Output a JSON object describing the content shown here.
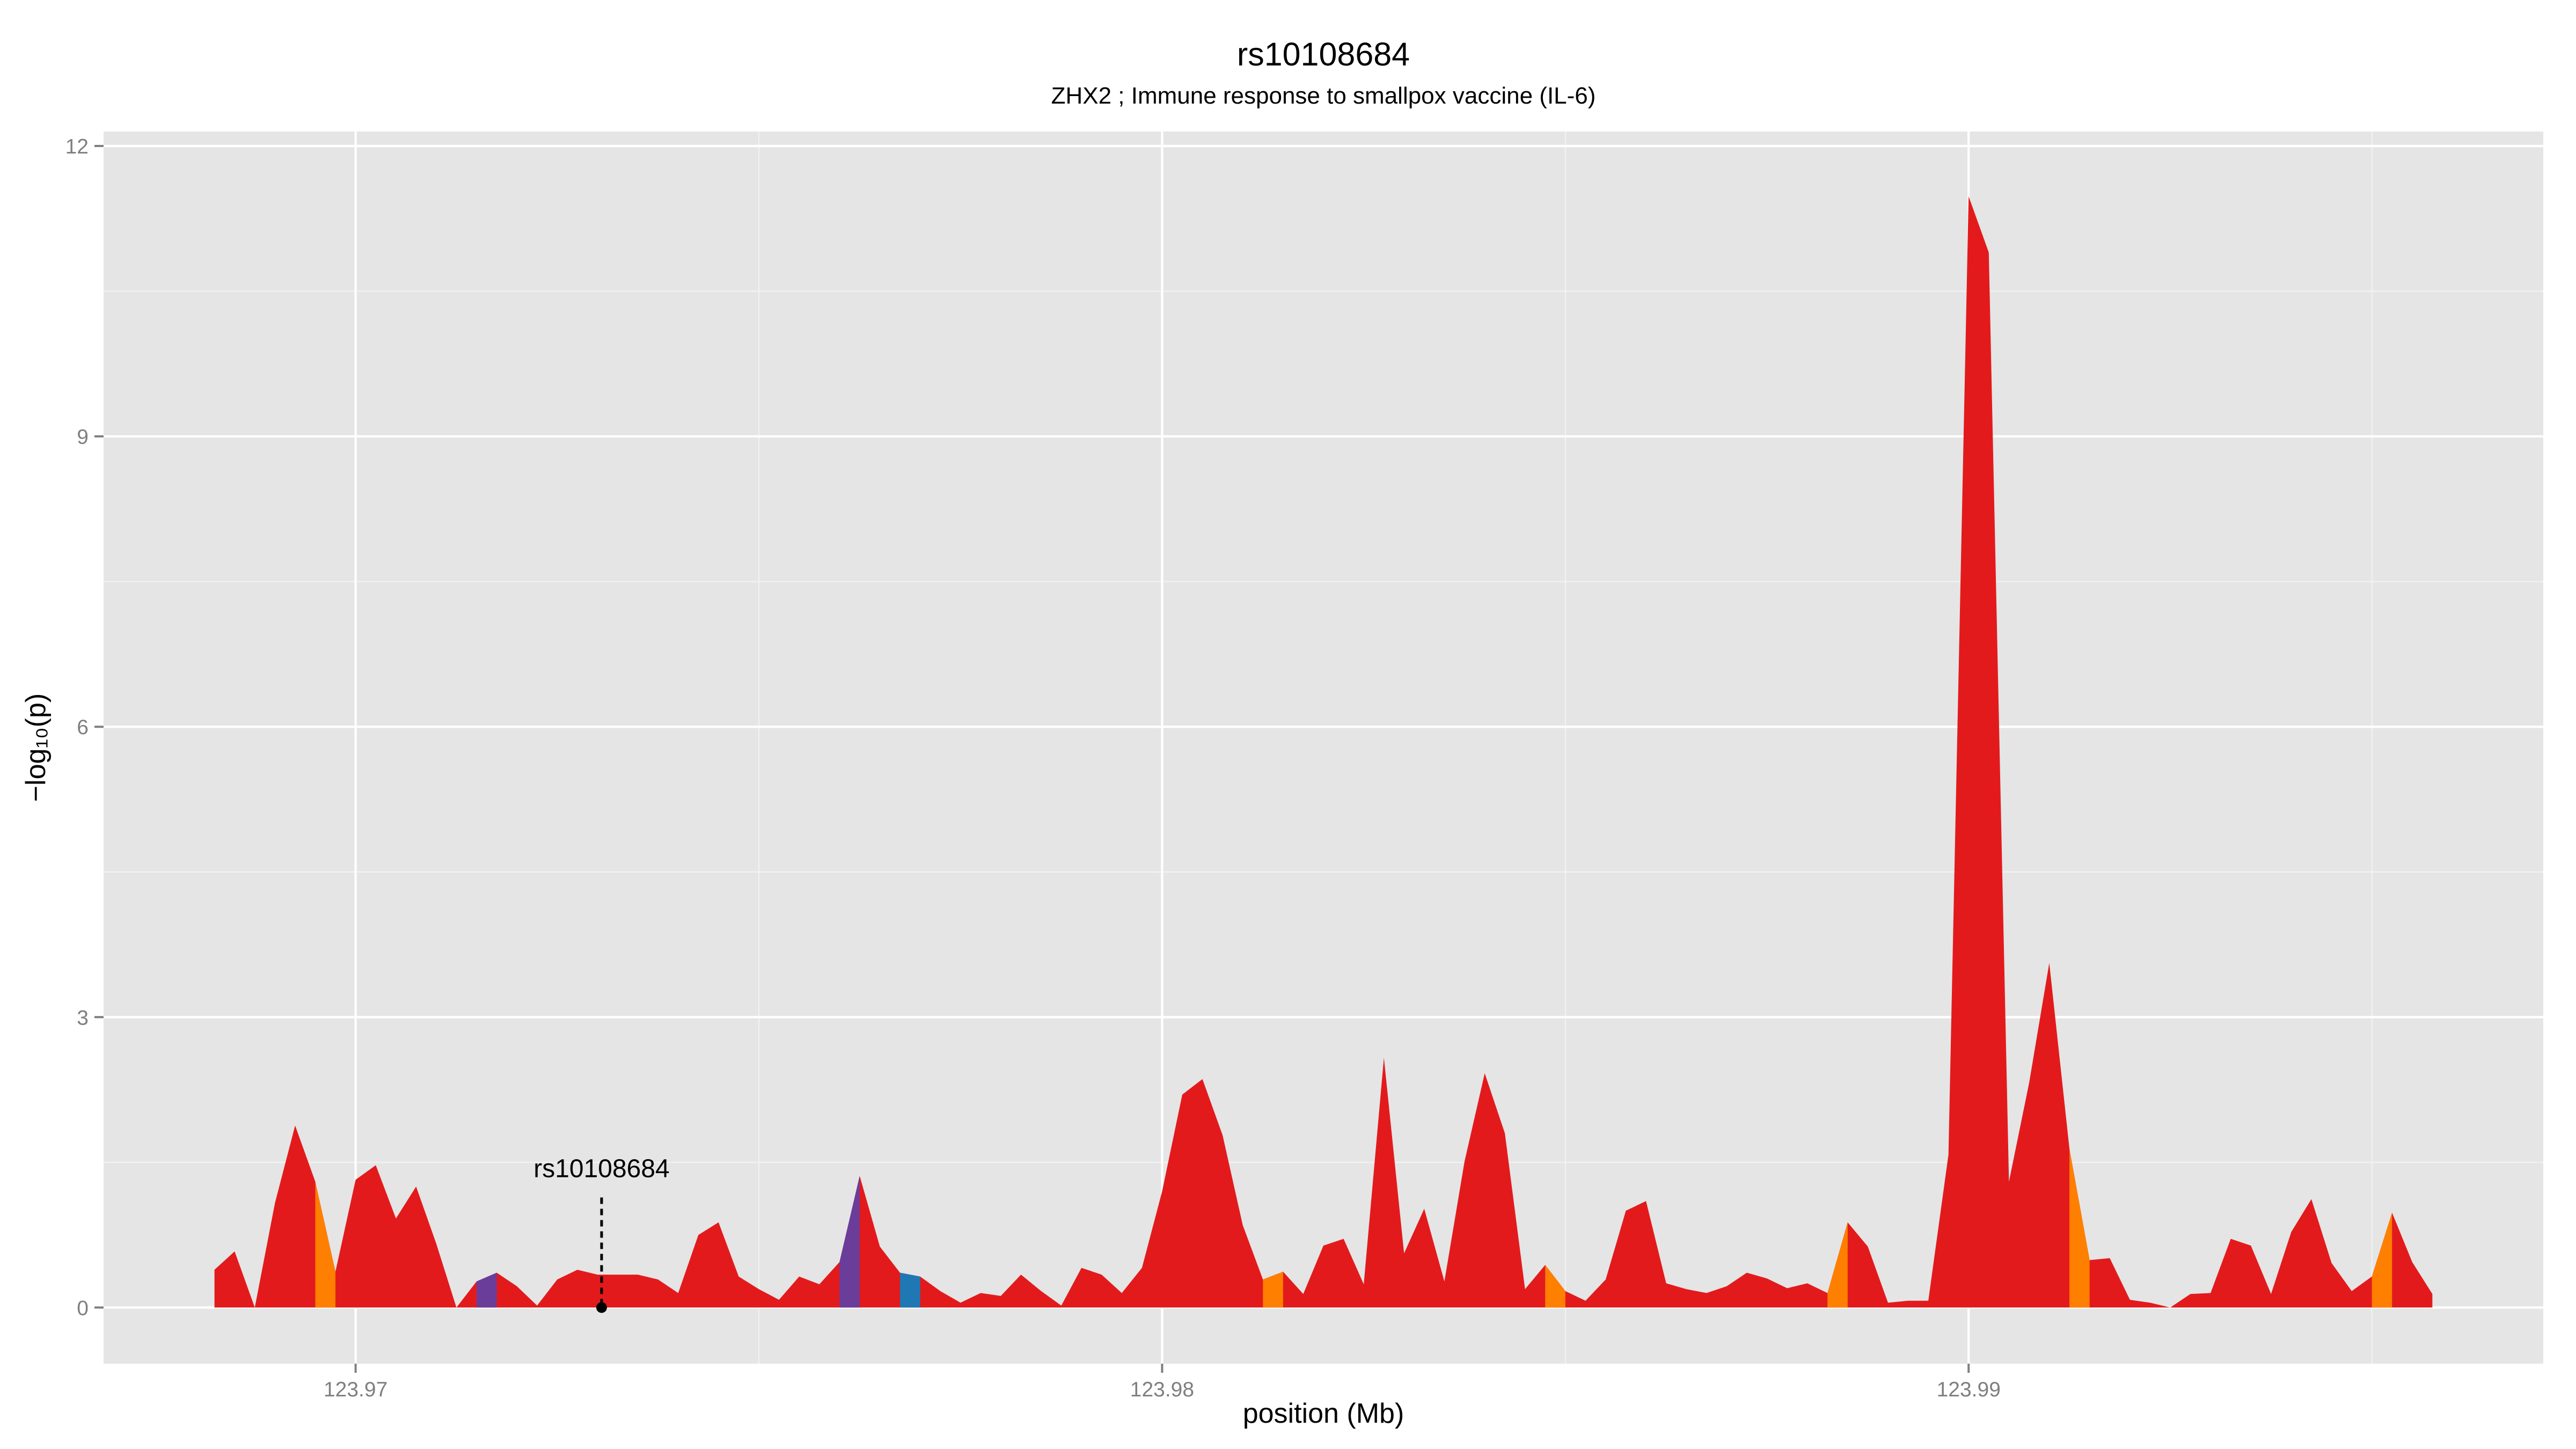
{
  "chart_data": {
    "type": "area",
    "title": "rs10108684",
    "subtitle": "ZHX2 ; Immune response to smallpox vaccine (IL-6)",
    "xlabel": "position (Mb)",
    "ylabel": "−log₁₀(p)",
    "xlim": [
      123.966875,
      123.997125
    ],
    "ylim": [
      -0.58,
      12.15
    ],
    "x_ticks": [
      123.97,
      123.98,
      123.99
    ],
    "x_tick_labels": [
      "123.97",
      "123.98",
      "123.99"
    ],
    "x_minor_ticks": [
      123.975,
      123.985,
      123.995
    ],
    "y_ticks": [
      0,
      3,
      6,
      9,
      12
    ],
    "y_tick_labels": [
      "0",
      "3",
      "6",
      "9",
      "12"
    ],
    "y_minor_ticks": [
      1.5,
      4.5,
      7.5,
      10.5
    ],
    "grid": true,
    "legend": "none",
    "series": [
      {
        "color": "#E31A1C",
        "x": [
          123.96825,
          123.9685,
          123.96875,
          123.969,
          123.96925,
          123.9695,
          123.96975,
          123.97,
          123.97025,
          123.9705,
          123.97075,
          123.971,
          123.97125,
          123.9715,
          123.97175,
          123.972,
          123.97225,
          123.9725,
          123.97275,
          123.973,
          123.97325,
          123.9735,
          123.97375,
          123.974,
          123.97425,
          123.9745,
          123.97475,
          123.975,
          123.97525,
          123.9755,
          123.97575,
          123.976,
          123.97625,
          123.9765,
          123.97675,
          123.977,
          123.97725,
          123.9775,
          123.97775,
          123.978,
          123.97825,
          123.9785,
          123.97875,
          123.979,
          123.97925,
          123.9795,
          123.97975,
          123.98,
          123.98025,
          123.9805,
          123.98075,
          123.981,
          123.98125,
          123.9815,
          123.98175,
          123.982,
          123.98225,
          123.9825,
          123.98275,
          123.983,
          123.98325,
          123.9835,
          123.98375,
          123.984,
          123.98425,
          123.9845,
          123.98475,
          123.985,
          123.98525,
          123.9855,
          123.98575,
          123.986,
          123.98625,
          123.9865,
          123.98675,
          123.987,
          123.98725,
          123.9875,
          123.98775,
          123.988,
          123.98825,
          123.9885,
          123.98875,
          123.989,
          123.98925,
          123.9895,
          123.98975,
          123.99,
          123.99025,
          123.9905,
          123.99075,
          123.991,
          123.99125,
          123.9915,
          123.99175,
          123.992,
          123.99225,
          123.9925,
          123.99275,
          123.993,
          123.99325,
          123.9935,
          123.99375,
          123.994,
          123.99425,
          123.9945,
          123.99475,
          123.995,
          123.99525,
          123.9955,
          123.99575
        ],
        "y": [
          0.39,
          0.58,
          0.0,
          1.08,
          1.88,
          1.3,
          0.37,
          1.32,
          1.47,
          0.92,
          1.25,
          0.66,
          0.0,
          0.27,
          0.36,
          0.22,
          0.02,
          0.29,
          0.39,
          0.34,
          0.34,
          0.34,
          0.29,
          0.15,
          0.75,
          0.88,
          0.32,
          0.19,
          0.08,
          0.32,
          0.24,
          0.47,
          1.36,
          0.63,
          0.36,
          0.32,
          0.17,
          0.05,
          0.15,
          0.12,
          0.34,
          0.17,
          0.02,
          0.41,
          0.34,
          0.15,
          0.41,
          1.2,
          2.2,
          2.36,
          1.78,
          0.85,
          0.29,
          0.37,
          0.14,
          0.64,
          0.71,
          0.24,
          2.58,
          0.56,
          1.02,
          0.27,
          1.51,
          2.42,
          1.8,
          0.19,
          0.44,
          0.17,
          0.07,
          0.29,
          1.0,
          1.1,
          0.25,
          0.19,
          0.15,
          0.22,
          0.36,
          0.3,
          0.2,
          0.25,
          0.15,
          0.88,
          0.63,
          0.05,
          0.07,
          0.07,
          1.58,
          11.48,
          10.9,
          1.3,
          2.32,
          3.56,
          1.64,
          0.49,
          0.51,
          0.08,
          0.05,
          0.0,
          0.14,
          0.15,
          0.71,
          0.64,
          0.14,
          0.78,
          1.12,
          0.46,
          0.17,
          0.32,
          0.98,
          0.47,
          0.14
        ]
      }
    ],
    "fill_segments": [
      {
        "x0": 123.9695,
        "x1": 123.96975,
        "color": "#FF7F00"
      },
      {
        "x0": 123.9715,
        "x1": 123.97175,
        "color": "#6A3D9A"
      },
      {
        "x0": 123.976,
        "x1": 123.97625,
        "color": "#6A3D9A"
      },
      {
        "x0": 123.97675,
        "x1": 123.977,
        "color": "#1F78B4"
      },
      {
        "x0": 123.98125,
        "x1": 123.9815,
        "color": "#FF7F00"
      },
      {
        "x0": 123.98475,
        "x1": 123.985,
        "color": "#FF7F00"
      },
      {
        "x0": 123.98825,
        "x1": 123.9885,
        "color": "#FF7F00"
      },
      {
        "x0": 123.99125,
        "x1": 123.9915,
        "color": "#FF7F00"
      },
      {
        "x0": 123.995,
        "x1": 123.99525,
        "color": "#FF7F00"
      }
    ],
    "annotations": [
      {
        "label": "rs10108684",
        "x": 123.97305,
        "y": 0
      }
    ],
    "colors": {
      "panel_background": "#E5E5E5",
      "grid_major": "#FFFFFF",
      "grid_minor": "#F2F2F2",
      "axis_text": "#7F7F7F",
      "annotation": "#000000"
    }
  }
}
